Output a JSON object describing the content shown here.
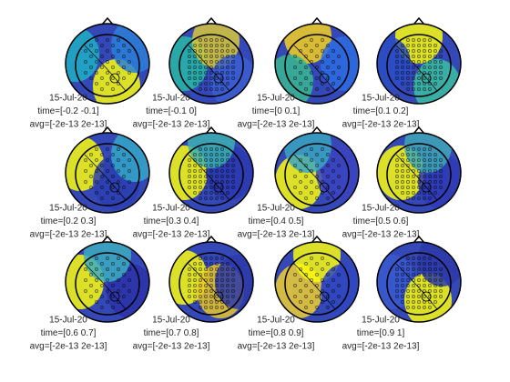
{
  "panels": [
    {
      "date": "15-Jul-20",
      "time": "time=[-0.2 -0.1]",
      "avg": "avg=[-2e-13 2e-13]"
    },
    {
      "date": "15-Jul-20",
      "time": "time=[-0.1 0]",
      "avg": "avg=[-2e-13 2e-13]"
    },
    {
      "date": "15-Jul-20",
      "time": "time=[0 0.1]",
      "avg": "avg=[-2e-13 2e-13]"
    },
    {
      "date": "15-Jul-20",
      "time": "time=[0.1 0.2]",
      "avg": "avg=[-2e-13 2e-13]"
    },
    {
      "date": "15-Jul-20",
      "time": "time=[0.2 0.3]",
      "avg": "avg=[-2e-13 2e-13]"
    },
    {
      "date": "15-Jul-20",
      "time": "time=[0.3 0.4]",
      "avg": "avg=[-2e-13 2e-13]"
    },
    {
      "date": "15-Jul-20",
      "time": "time=[0.4 0.5]",
      "avg": "avg=[-2e-13 2e-13]"
    },
    {
      "date": "15-Jul-20",
      "time": "time=[0.5 0.6]",
      "avg": "avg=[-2e-13 2e-13]"
    },
    {
      "date": "15-Jul-20",
      "time": "time=[0.6 0.7]",
      "avg": "avg=[-2e-13 2e-13]"
    },
    {
      "date": "15-Jul-20",
      "time": "time=[0.7 0.8]",
      "avg": "avg=[-2e-13 2e-13]"
    },
    {
      "date": "15-Jul-20",
      "time": "time=[0.8 0.9]",
      "avg": "avg=[-2e-13 2e-13]"
    },
    {
      "date": "15-Jul-20",
      "time": "time=[0.9 1]",
      "avg": "avg=[-2e-13 2e-13]"
    }
  ]
}
